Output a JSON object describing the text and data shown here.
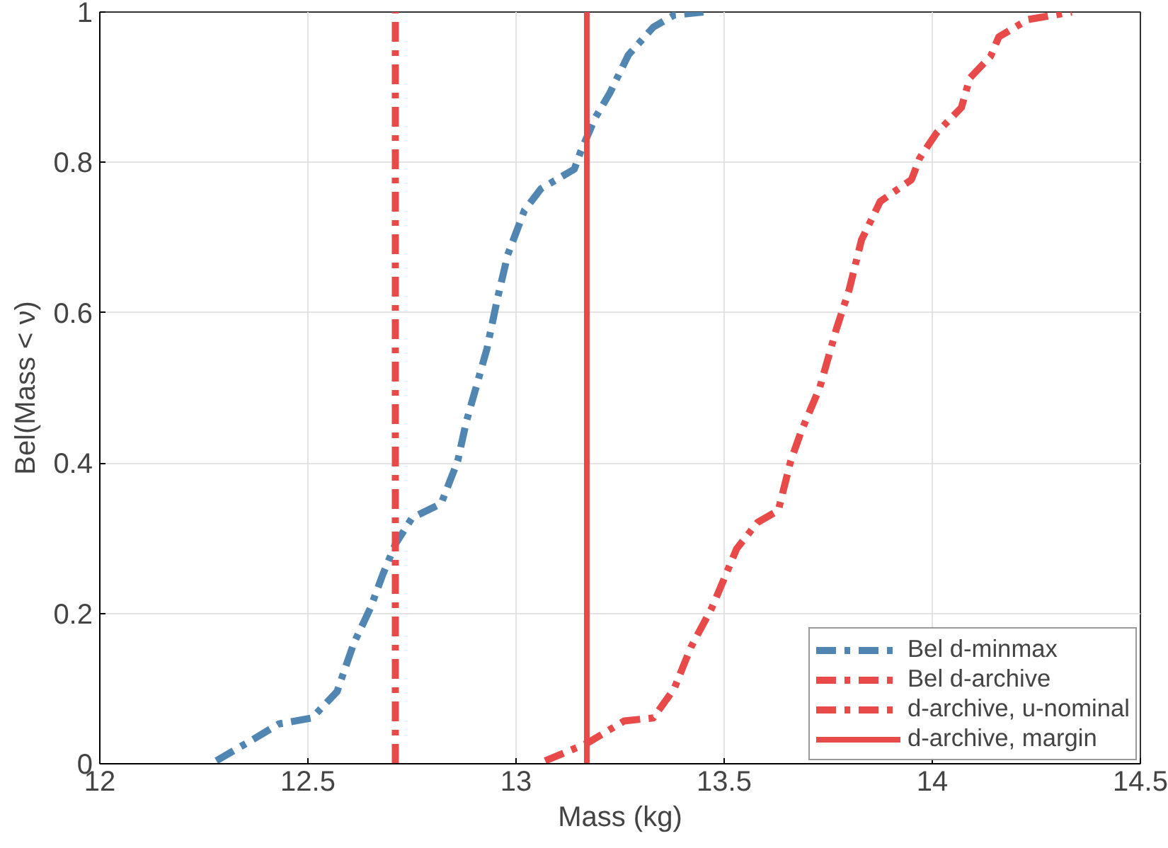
{
  "chart_data": {
    "type": "line",
    "xlabel": "Mass (kg)",
    "ylabel": "Bel(Mass < ν)",
    "xlim": [
      12,
      14.5
    ],
    "xticks": [
      12,
      12.5,
      13,
      13.5,
      14,
      14.5
    ],
    "ylim": [
      0,
      1
    ],
    "yticks": [
      0,
      0.2,
      0.4,
      0.6,
      0.8,
      1
    ],
    "grid": true,
    "legend": "bottom right",
    "line_style": "dashed",
    "series": [
      {
        "name": "Bel d-minmax",
        "color": "#5186b2",
        "x": [
          12.28,
          12.37,
          12.43,
          12.51,
          12.57,
          12.61,
          12.65,
          12.68,
          12.71,
          12.75,
          12.82,
          12.86,
          12.88,
          12.9,
          12.93,
          12.955,
          12.98,
          13.02,
          13.06,
          13.14,
          13.155,
          13.19,
          13.225,
          13.27,
          13.33,
          13.38,
          13.45
        ],
        "values": [
          0.004,
          0.033,
          0.053,
          0.061,
          0.096,
          0.16,
          0.207,
          0.252,
          0.292,
          0.327,
          0.346,
          0.403,
          0.454,
          0.493,
          0.552,
          0.618,
          0.677,
          0.736,
          0.765,
          0.791,
          0.814,
          0.859,
          0.892,
          0.943,
          0.98,
          0.996,
          1.0
        ]
      },
      {
        "name": "Bel d-archive",
        "color": "#e84a4a",
        "x": [
          13.07,
          13.17,
          13.26,
          13.33,
          13.38,
          13.42,
          13.47,
          13.49,
          13.53,
          13.58,
          13.63,
          13.66,
          13.685,
          13.73,
          13.77,
          13.8,
          13.83,
          13.875,
          13.95,
          13.97,
          14.01,
          14.07,
          14.09,
          14.14,
          14.16,
          14.23,
          14.335
        ],
        "values": [
          0.004,
          0.027,
          0.057,
          0.061,
          0.1,
          0.155,
          0.207,
          0.233,
          0.286,
          0.321,
          0.337,
          0.403,
          0.442,
          0.501,
          0.579,
          0.63,
          0.697,
          0.748,
          0.777,
          0.806,
          0.839,
          0.873,
          0.912,
          0.941,
          0.967,
          0.99,
          1.0
        ]
      },
      {
        "name": "d-archive, u-nominal",
        "color": "#e84a4a",
        "line_style": "dashed",
        "x": [
          12.71,
          12.71
        ],
        "values": [
          0,
          1
        ]
      },
      {
        "name": "d-archive, margin",
        "color": "#e84a4a",
        "line_style": "solid",
        "x": [
          13.17,
          13.17
        ],
        "values": [
          0,
          1
        ]
      }
    ]
  }
}
